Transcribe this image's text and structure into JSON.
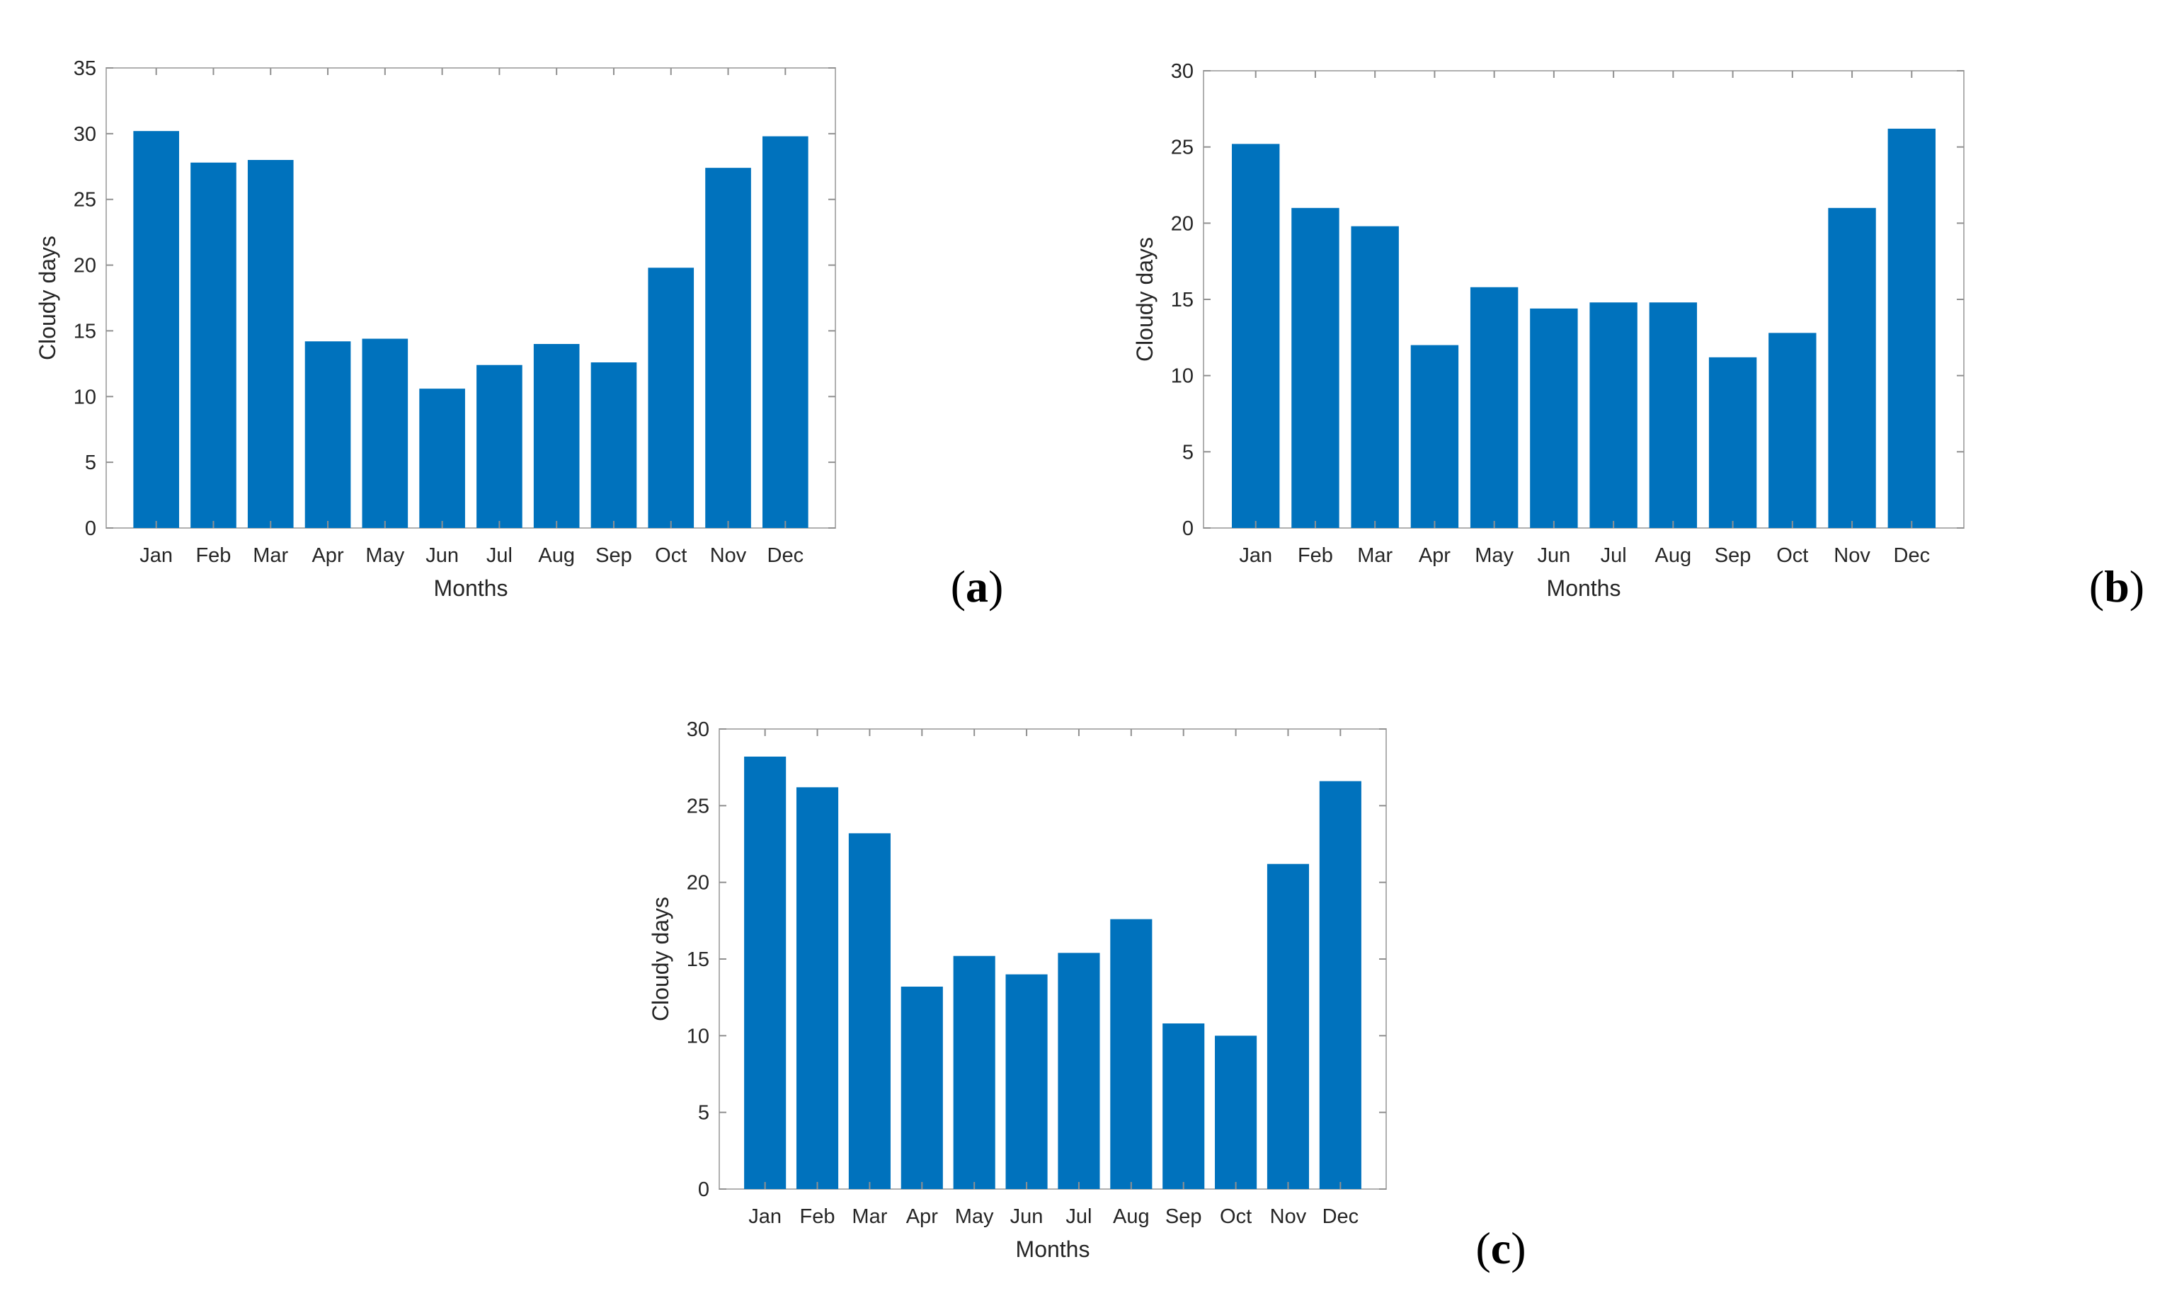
{
  "charts": [
    {
      "panel_label": "(a)",
      "chart_data": {
        "type": "bar",
        "categories": [
          "Jan",
          "Feb",
          "Mar",
          "Apr",
          "May",
          "Jun",
          "Jul",
          "Aug",
          "Sep",
          "Oct",
          "Nov",
          "Dec"
        ],
        "values": [
          30.2,
          27.8,
          28.0,
          14.2,
          14.4,
          10.6,
          12.4,
          14.0,
          12.6,
          19.8,
          27.4,
          29.8
        ],
        "xlabel": "Months",
        "ylabel": "Cloudy days",
        "ylim": [
          0,
          35
        ],
        "yticks": [
          0,
          5,
          10,
          15,
          20,
          25,
          30,
          35
        ],
        "bar_color": "#0072BD"
      }
    },
    {
      "panel_label": "(b)",
      "chart_data": {
        "type": "bar",
        "categories": [
          "Jan",
          "Feb",
          "Mar",
          "Apr",
          "May",
          "Jun",
          "Jul",
          "Aug",
          "Sep",
          "Oct",
          "Nov",
          "Dec"
        ],
        "values": [
          25.2,
          21.0,
          19.8,
          12.0,
          15.8,
          14.4,
          14.8,
          14.8,
          11.2,
          12.8,
          21.0,
          26.2
        ],
        "xlabel": "Months",
        "ylabel": "Cloudy days",
        "ylim": [
          0,
          30
        ],
        "yticks": [
          0,
          5,
          10,
          15,
          20,
          25,
          30
        ],
        "bar_color": "#0072BD"
      }
    },
    {
      "panel_label": "(c)",
      "chart_data": {
        "type": "bar",
        "categories": [
          "Jan",
          "Feb",
          "Mar",
          "Apr",
          "May",
          "Jun",
          "Jul",
          "Aug",
          "Sep",
          "Oct",
          "Nov",
          "Dec"
        ],
        "values": [
          28.2,
          26.2,
          23.2,
          13.2,
          15.2,
          14.0,
          15.4,
          17.6,
          10.8,
          10.0,
          21.2,
          26.6
        ],
        "xlabel": "Months",
        "ylabel": "Cloudy days",
        "ylim": [
          0,
          30
        ],
        "yticks": [
          0,
          5,
          10,
          15,
          20,
          25,
          30
        ],
        "bar_color": "#0072BD"
      }
    }
  ]
}
